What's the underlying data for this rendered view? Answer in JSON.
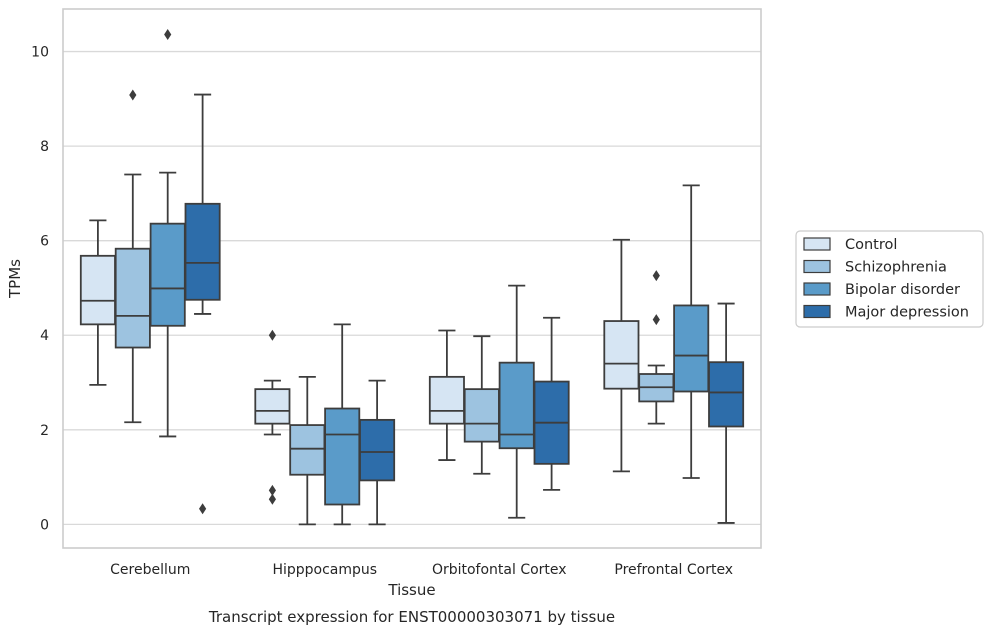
{
  "chart_data": {
    "type": "box",
    "title": "Transcript expression for ENST00000303071 by tissue",
    "xlabel": "Tissue",
    "ylabel": "TPMs",
    "ylim": [
      -0.5,
      10.9
    ],
    "yticks": [
      0,
      2,
      4,
      6,
      8,
      10
    ],
    "grid": "horizontal",
    "legend_position": "right",
    "categories": [
      "Cerebellum",
      "Hipppocampus",
      "Orbitofontal Cortex",
      "Prefrontal Cortex"
    ],
    "series": [
      {
        "name": "Control",
        "color": "#d6e5f3",
        "boxes": [
          {
            "min": 2.95,
            "q1": 4.23,
            "median": 4.73,
            "q3": 5.68,
            "max": 6.43,
            "outliers": []
          },
          {
            "min": 1.9,
            "q1": 2.13,
            "median": 2.4,
            "q3": 2.86,
            "max": 3.04,
            "outliers": [
              4.0,
              0.72,
              0.53
            ]
          },
          {
            "min": 1.36,
            "q1": 2.13,
            "median": 2.4,
            "q3": 3.12,
            "max": 4.1,
            "outliers": []
          },
          {
            "min": 1.12,
            "q1": 2.87,
            "median": 3.4,
            "q3": 4.3,
            "max": 6.02,
            "outliers": []
          }
        ]
      },
      {
        "name": "Schizophrenia",
        "color": "#9dc3e0",
        "boxes": [
          {
            "min": 2.16,
            "q1": 3.74,
            "median": 4.41,
            "q3": 5.83,
            "max": 7.4,
            "outliers": [
              9.08
            ]
          },
          {
            "min": 0.0,
            "q1": 1.05,
            "median": 1.6,
            "q3": 2.1,
            "max": 3.12,
            "outliers": []
          },
          {
            "min": 1.07,
            "q1": 1.75,
            "median": 2.13,
            "q3": 2.86,
            "max": 3.98,
            "outliers": []
          },
          {
            "min": 2.13,
            "q1": 2.6,
            "median": 2.9,
            "q3": 3.18,
            "max": 3.36,
            "outliers": [
              5.26,
              4.33
            ]
          }
        ]
      },
      {
        "name": "Bipolar disorder",
        "color": "#5a9bc9",
        "boxes": [
          {
            "min": 1.86,
            "q1": 4.2,
            "median": 4.99,
            "q3": 6.36,
            "max": 7.44,
            "outliers": [
              10.36
            ]
          },
          {
            "min": 0.0,
            "q1": 0.42,
            "median": 1.9,
            "q3": 2.45,
            "max": 4.23,
            "outliers": []
          },
          {
            "min": 0.14,
            "q1": 1.61,
            "median": 1.9,
            "q3": 3.42,
            "max": 5.05,
            "outliers": []
          },
          {
            "min": 0.98,
            "q1": 2.81,
            "median": 3.57,
            "q3": 4.63,
            "max": 7.17,
            "outliers": []
          }
        ]
      },
      {
        "name": "Major depression",
        "color": "#2d6daa",
        "boxes": [
          {
            "min": 4.45,
            "q1": 4.75,
            "median": 5.53,
            "q3": 6.78,
            "max": 9.09,
            "outliers": [
              0.33
            ]
          },
          {
            "min": 0.0,
            "q1": 0.93,
            "median": 1.53,
            "q3": 2.21,
            "max": 3.04,
            "outliers": []
          },
          {
            "min": 0.73,
            "q1": 1.28,
            "median": 2.15,
            "q3": 3.02,
            "max": 4.37,
            "outliers": []
          },
          {
            "min": 0.03,
            "q1": 2.07,
            "median": 2.79,
            "q3": 3.43,
            "max": 4.67,
            "outliers": []
          }
        ]
      }
    ]
  }
}
